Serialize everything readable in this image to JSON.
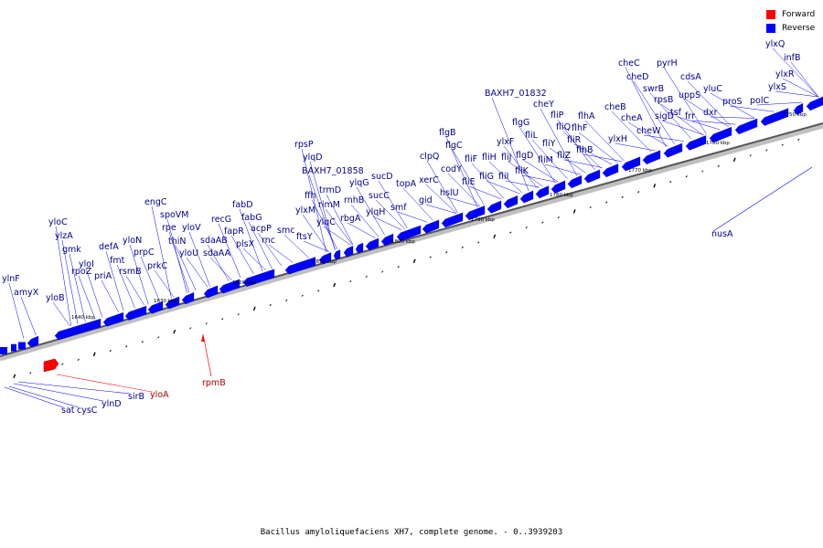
{
  "legend": {
    "forward_label": "Forward",
    "reverse_label": "Reverse",
    "forward_color": "#ff0000",
    "reverse_color": "#0000ff"
  },
  "caption": "Bacillus amyloliquefaciens XH7, complete genome. - 0..3939203",
  "ticks": [
    "1640 kbp",
    "1630 kbp",
    "1620 kbp",
    "1810 kbp",
    "1800 kbp",
    "1790 kbp",
    "1780 kbp",
    "1770 kbp",
    "1760 kbp",
    "1750 kbp"
  ],
  "genes_above": [
    "ylnF",
    "amyX",
    "yloC",
    "ylzA",
    "gmk",
    "yloI",
    "rpoZ",
    "yloB",
    "priA",
    "defA",
    "fmt",
    "rsmB",
    "yloN",
    "prpC",
    "prkC",
    "engC",
    "spoVM",
    "rpe",
    "thiN",
    "yloV",
    "yloU",
    "sdaAB",
    "sdaAA",
    "recG",
    "fapR",
    "plsX",
    "fabD",
    "fabG",
    "acpP",
    "rnc",
    "smc",
    "rpsP",
    "ylqD",
    "ftsY",
    "ffh",
    "ylxM",
    "BAXH7_01858",
    "trmD",
    "rimM",
    "ylqC",
    "rnhB",
    "rbgA",
    "ylqG",
    "ylqH",
    "sucD",
    "sucC",
    "smf",
    "topA",
    "gid",
    "xerC",
    "clpQ",
    "flgB",
    "flgC",
    "hslU",
    "codY",
    "fliF",
    "fliE",
    "fliH",
    "fliG",
    "ylxF",
    "fliI",
    "fliJ",
    "fliK",
    "flgD",
    "fliL",
    "fliM",
    "flgG",
    "fliY",
    "cheY",
    "BAXH7_01832",
    "fliP",
    "fliQ",
    "fliR",
    "fliZ",
    "flhB",
    "flhA",
    "flhF",
    "cheB",
    "ylxH",
    "cheA",
    "cheW",
    "cheC",
    "cheD",
    "swrB",
    "sigD",
    "rpsB",
    "tsf",
    "pyrH",
    "uppS",
    "cdsA",
    "frr",
    "dxr",
    "yluC",
    "proS",
    "polC",
    "ylxS",
    "ylxR",
    "infB",
    "ylxQ"
  ],
  "genes_below": [
    "rpmB",
    "nusA",
    "yloA",
    "sirB",
    "ylnD",
    "cysC",
    "sat"
  ]
}
